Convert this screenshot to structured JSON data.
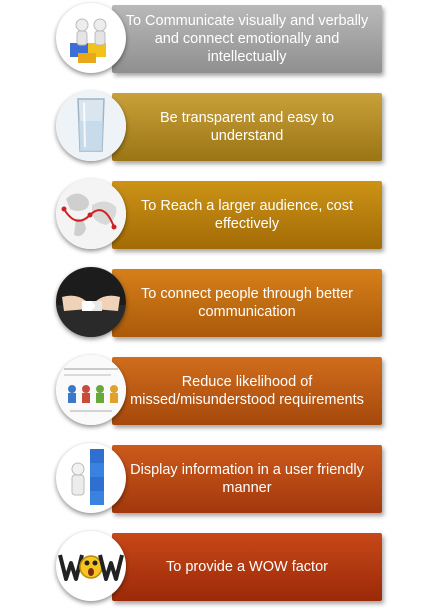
{
  "items": [
    {
      "label": "To Communicate visually and verbally and connect emotionally and intellectually",
      "icon": "puzzle-people-icon",
      "color_top": "#b9b9b9",
      "color_bottom": "#8f8f8f"
    },
    {
      "label": "Be transparent and easy to understand",
      "icon": "glass-water-icon",
      "color_top": "#c9a13a",
      "color_bottom": "#9b7415"
    },
    {
      "label": "To Reach a larger audience, cost effectively",
      "icon": "world-map-icon",
      "color_top": "#cc9316",
      "color_bottom": "#a36b06"
    },
    {
      "label": "To connect people through better communication",
      "icon": "hands-puzzle-icon",
      "color_top": "#d67f1a",
      "color_bottom": "#ab5a0a"
    },
    {
      "label": "Reduce likelihood of missed/misunderstood requirements",
      "icon": "people-discussion-icon",
      "color_top": "#d06d1c",
      "color_bottom": "#a5480c"
    },
    {
      "label": "Display information in a user friendly manner",
      "icon": "easy-blocks-icon",
      "color_top": "#cc5a1c",
      "color_bottom": "#a2380c"
    },
    {
      "label": "To provide a WOW factor",
      "icon": "wow-face-icon",
      "color_top": "#c74818",
      "color_bottom": "#9b2908"
    }
  ]
}
